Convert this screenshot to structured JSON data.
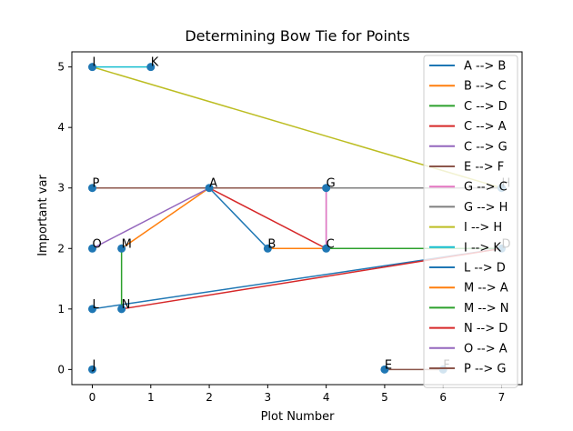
{
  "chart_data": {
    "type": "scatter",
    "title": "Determining Bow Tie for Points",
    "xlabel": "Plot Number",
    "ylabel": "Important var",
    "xlim": [
      -0.35,
      7.35
    ],
    "ylim": [
      -0.25,
      5.25
    ],
    "xticks": [
      0,
      1,
      2,
      3,
      4,
      5,
      6,
      7
    ],
    "yticks": [
      0,
      1,
      2,
      3,
      4,
      5
    ],
    "grid": false,
    "legend_position": "top-right",
    "point_color": "#1f77b4",
    "points": [
      {
        "label": "A",
        "x": 2,
        "y": 3
      },
      {
        "label": "B",
        "x": 3,
        "y": 2
      },
      {
        "label": "C",
        "x": 4,
        "y": 2
      },
      {
        "label": "D",
        "x": 7,
        "y": 2
      },
      {
        "label": "E",
        "x": 5,
        "y": 0
      },
      {
        "label": "F",
        "x": 6,
        "y": 0
      },
      {
        "label": "G",
        "x": 4,
        "y": 3
      },
      {
        "label": "H",
        "x": 7,
        "y": 3
      },
      {
        "label": "I",
        "x": 0,
        "y": 5
      },
      {
        "label": "J",
        "x": 0,
        "y": 0
      },
      {
        "label": "K",
        "x": 1,
        "y": 5
      },
      {
        "label": "L",
        "x": 0,
        "y": 1
      },
      {
        "label": "M",
        "x": 0.5,
        "y": 2
      },
      {
        "label": "N",
        "x": 0.5,
        "y": 1
      },
      {
        "label": "O",
        "x": 0,
        "y": 2
      },
      {
        "label": "P",
        "x": 0,
        "y": 3
      }
    ],
    "series": [
      {
        "name": "A --> B",
        "color": "#1f77b4",
        "from": "A",
        "to": "B"
      },
      {
        "name": "B --> C",
        "color": "#ff7f0e",
        "from": "B",
        "to": "C"
      },
      {
        "name": "C --> D",
        "color": "#2ca02c",
        "from": "C",
        "to": "D"
      },
      {
        "name": "C --> A",
        "color": "#d62728",
        "from": "C",
        "to": "A"
      },
      {
        "name": "C --> G",
        "color": "#9467bd",
        "from": "C",
        "to": "G"
      },
      {
        "name": "E --> F",
        "color": "#8c564b",
        "from": "E",
        "to": "F"
      },
      {
        "name": "G --> C",
        "color": "#e377c2",
        "from": "G",
        "to": "C"
      },
      {
        "name": "G --> H",
        "color": "#7f7f7f",
        "from": "G",
        "to": "H"
      },
      {
        "name": "I --> H",
        "color": "#bcbd22",
        "from": "I",
        "to": "H"
      },
      {
        "name": "I --> K",
        "color": "#17becf",
        "from": "I",
        "to": "K"
      },
      {
        "name": "L --> D",
        "color": "#1f77b4",
        "from": "L",
        "to": "D"
      },
      {
        "name": "M --> A",
        "color": "#ff7f0e",
        "from": "M",
        "to": "A"
      },
      {
        "name": "M --> N",
        "color": "#2ca02c",
        "from": "M",
        "to": "N"
      },
      {
        "name": "N --> D",
        "color": "#d62728",
        "from": "N",
        "to": "D"
      },
      {
        "name": "O --> A",
        "color": "#9467bd",
        "from": "O",
        "to": "A"
      },
      {
        "name": "P --> G",
        "color": "#8c564b",
        "from": "P",
        "to": "G"
      }
    ]
  }
}
